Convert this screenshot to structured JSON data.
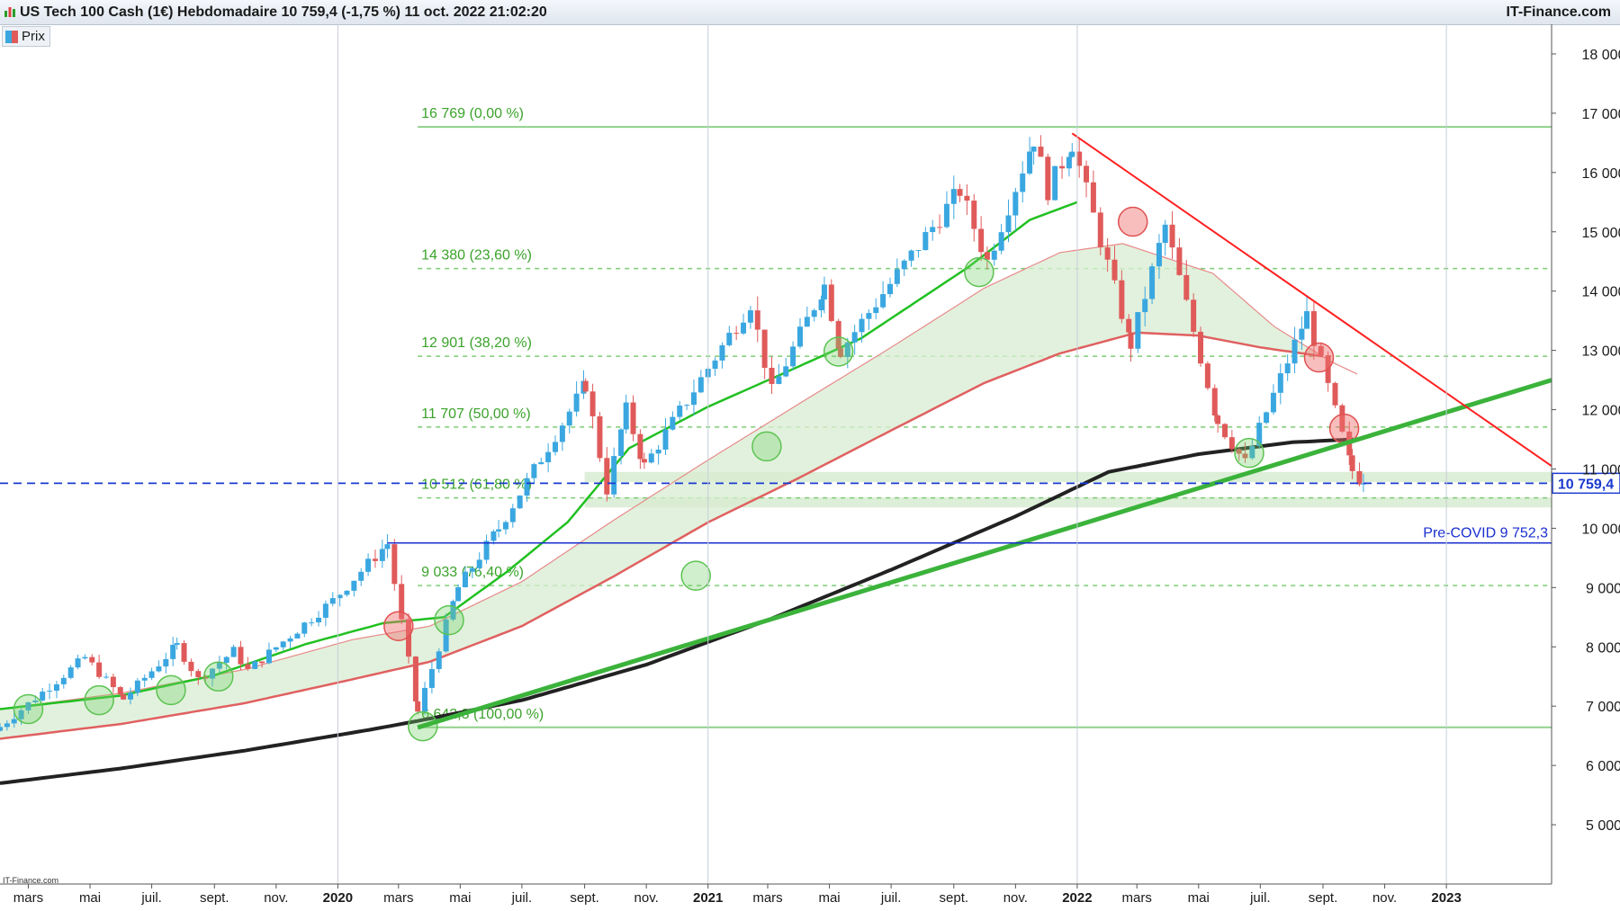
{
  "window": {
    "title": "US Tech 100 Cash (1€) Hebdomadaire 10 759,4 (-1,75 %) 11 oct. 2022 21:02:20",
    "brand": "IT-Finance.com",
    "legend_label": "Prix",
    "credit": "IT-Finance.com"
  },
  "colors": {
    "up_candle": "#3aa7e0",
    "down_candle": "#e05a5a",
    "ema_fast": "#22c022",
    "ma_slow": "#e06060",
    "ma_long": "#222222",
    "trend_up": "#3bb33b",
    "trend_down": "#ff2020",
    "fib": "#3aa32a",
    "last_price": "#1a3ad0"
  },
  "chart_data": {
    "type": "candlestick",
    "timeframe": "Hebdomadaire",
    "ylim": [
      4000,
      18500
    ],
    "y_ticks": [
      5000,
      6000,
      7000,
      8000,
      9000,
      10000,
      11000,
      12000,
      13000,
      14000,
      15000,
      16000,
      17000,
      18000
    ],
    "y_tick_labels": [
      "5 000",
      "6 000",
      "7 000",
      "8 000",
      "9 000",
      "10 000",
      "11 000",
      "12 000",
      "13 000",
      "14 000",
      "15 000",
      "16 000",
      "17 000",
      "18 000"
    ],
    "xlim": [
      "2019-02-01",
      "2023-04-15"
    ],
    "x_ticks": [
      {
        "date": "2019-03-01",
        "label": "mars",
        "bold": false
      },
      {
        "date": "2019-05-01",
        "label": "mai",
        "bold": false
      },
      {
        "date": "2019-07-01",
        "label": "juil.",
        "bold": false
      },
      {
        "date": "2019-09-01",
        "label": "sept.",
        "bold": false
      },
      {
        "date": "2019-11-01",
        "label": "nov.",
        "bold": false
      },
      {
        "date": "2020-01-01",
        "label": "2020",
        "bold": true
      },
      {
        "date": "2020-03-01",
        "label": "mars",
        "bold": false
      },
      {
        "date": "2020-05-01",
        "label": "mai",
        "bold": false
      },
      {
        "date": "2020-07-01",
        "label": "juil.",
        "bold": false
      },
      {
        "date": "2020-09-01",
        "label": "sept.",
        "bold": false
      },
      {
        "date": "2020-11-01",
        "label": "nov.",
        "bold": false
      },
      {
        "date": "2021-01-01",
        "label": "2021",
        "bold": true
      },
      {
        "date": "2021-03-01",
        "label": "mars",
        "bold": false
      },
      {
        "date": "2021-05-01",
        "label": "mai",
        "bold": false
      },
      {
        "date": "2021-07-01",
        "label": "juil.",
        "bold": false
      },
      {
        "date": "2021-09-01",
        "label": "sept.",
        "bold": false
      },
      {
        "date": "2021-11-01",
        "label": "nov.",
        "bold": false
      },
      {
        "date": "2022-01-01",
        "label": "2022",
        "bold": true
      },
      {
        "date": "2022-03-01",
        "label": "mars",
        "bold": false
      },
      {
        "date": "2022-05-01",
        "label": "mai",
        "bold": false
      },
      {
        "date": "2022-07-01",
        "label": "juil.",
        "bold": false
      },
      {
        "date": "2022-09-01",
        "label": "sept.",
        "bold": false
      },
      {
        "date": "2022-11-01",
        "label": "nov.",
        "bold": false
      },
      {
        "date": "2023-01-01",
        "label": "2023",
        "bold": true
      }
    ],
    "price_path": [
      [
        "2019-02-01",
        6650
      ],
      [
        "2019-04-26",
        7820
      ],
      [
        "2019-06-03",
        7120
      ],
      [
        "2019-07-26",
        8020
      ],
      [
        "2019-08-16",
        7450
      ],
      [
        "2019-09-20",
        7930
      ],
      [
        "2019-10-04",
        7600
      ],
      [
        "2019-12-27",
        8780
      ],
      [
        "2020-02-19",
        9740
      ],
      [
        "2020-03-20",
        6900
      ],
      [
        "2020-04-29",
        9000
      ],
      [
        "2020-06-08",
        10000
      ],
      [
        "2020-09-02",
        12420
      ],
      [
        "2020-09-23",
        10650
      ],
      [
        "2020-10-12",
        12000
      ],
      [
        "2020-10-30",
        11050
      ],
      [
        "2021-02-12",
        13800
      ],
      [
        "2021-03-05",
        12300
      ],
      [
        "2021-04-26",
        14100
      ],
      [
        "2021-05-12",
        13000
      ],
      [
        "2021-09-07",
        15700
      ],
      [
        "2021-10-04",
        14500
      ],
      [
        "2021-11-19",
        16570
      ],
      [
        "2021-12-03",
        15700
      ],
      [
        "2021-12-27",
        16500
      ],
      [
        "2022-02-23",
        13100
      ],
      [
        "2022-03-29",
        15100
      ],
      [
        "2022-05-20",
        11800
      ],
      [
        "2022-06-16",
        11100
      ],
      [
        "2022-08-16",
        13600
      ],
      [
        "2022-09-30",
        10970
      ],
      [
        "2022-10-11",
        10759.4
      ]
    ],
    "ema_fast_path": [
      [
        "2019-02-01",
        6950
      ],
      [
        "2019-06-01",
        7180
      ],
      [
        "2019-09-01",
        7520
      ],
      [
        "2019-12-01",
        8050
      ],
      [
        "2020-02-15",
        8400
      ],
      [
        "2020-04-15",
        8500
      ],
      [
        "2020-06-15",
        9250
      ],
      [
        "2020-08-15",
        10100
      ],
      [
        "2020-10-15",
        11350
      ],
      [
        "2021-01-01",
        12050
      ],
      [
        "2021-03-15",
        12600
      ],
      [
        "2021-06-01",
        13200
      ],
      [
        "2021-09-15",
        14400
      ],
      [
        "2021-11-15",
        15200
      ],
      [
        "2022-01-01",
        15500
      ]
    ],
    "ma_slow_path": [
      [
        "2019-02-01",
        6450
      ],
      [
        "2019-06-01",
        6700
      ],
      [
        "2019-10-01",
        7050
      ],
      [
        "2020-01-15",
        7450
      ],
      [
        "2020-04-01",
        7750
      ],
      [
        "2020-07-01",
        8350
      ],
      [
        "2020-10-01",
        9200
      ],
      [
        "2021-01-01",
        10100
      ],
      [
        "2021-04-01",
        10850
      ],
      [
        "2021-07-01",
        11650
      ],
      [
        "2021-10-01",
        12450
      ],
      [
        "2021-12-15",
        12950
      ],
      [
        "2022-03-01",
        13300
      ],
      [
        "2022-05-01",
        13250
      ],
      [
        "2022-07-01",
        13050
      ],
      [
        "2022-09-01",
        12900
      ]
    ],
    "ma_slow_upper_path": [
      [
        "2019-02-01",
        6950
      ],
      [
        "2019-06-01",
        7220
      ],
      [
        "2019-10-01",
        7620
      ],
      [
        "2020-01-15",
        8120
      ],
      [
        "2020-04-01",
        8350
      ],
      [
        "2020-07-01",
        9100
      ],
      [
        "2020-10-01",
        10150
      ],
      [
        "2021-01-01",
        11150
      ],
      [
        "2021-04-01",
        12100
      ],
      [
        "2021-07-01",
        13050
      ],
      [
        "2021-10-01",
        14050
      ],
      [
        "2021-12-15",
        14650
      ],
      [
        "2022-02-15",
        14800
      ],
      [
        "2022-05-15",
        14300
      ],
      [
        "2022-07-15",
        13400
      ],
      [
        "2022-09-10",
        12800
      ],
      [
        "2022-10-05",
        12600
      ]
    ],
    "ma_long_path": [
      [
        "2019-02-01",
        5700
      ],
      [
        "2019-06-01",
        5950
      ],
      [
        "2019-10-01",
        6250
      ],
      [
        "2020-02-01",
        6600
      ],
      [
        "2020-03-20",
        6750
      ],
      [
        "2020-07-01",
        7100
      ],
      [
        "2020-11-01",
        7700
      ],
      [
        "2021-03-01",
        8450
      ],
      [
        "2021-07-01",
        9300
      ],
      [
        "2021-11-01",
        10200
      ],
      [
        "2022-02-01",
        10950
      ],
      [
        "2022-05-01",
        11250
      ],
      [
        "2022-08-01",
        11450
      ],
      [
        "2022-10-01",
        11500
      ]
    ],
    "trend_up_line": [
      [
        "2020-03-20",
        6640
      ],
      [
        "2023-04-15",
        12500
      ]
    ],
    "trend_down_line": [
      [
        "2021-12-27",
        16660
      ],
      [
        "2023-04-15",
        11050
      ]
    ],
    "fibonacci": [
      {
        "value": 16769,
        "label": "16 769 (0,00 %)",
        "solid": true
      },
      {
        "value": 14380,
        "label": "14 380 (23,60 %)",
        "solid": false
      },
      {
        "value": 12901,
        "label": "12 901 (38,20 %)",
        "solid": false
      },
      {
        "value": 11707,
        "label": "11 707 (50,00 %)",
        "solid": false
      },
      {
        "value": 10512,
        "label": "10 512 (61,80 %)",
        "solid": false
      },
      {
        "value": 9033,
        "label": "9 033 (76,40 %)",
        "solid": false
      },
      {
        "value": 6642.3,
        "label": "6 642,3 (100,00 %)",
        "solid": true
      }
    ],
    "fib_start": "2020-03-20",
    "support_zones": [
      {
        "from": 10780,
        "to": 10950,
        "start": "2020-09-01"
      },
      {
        "from": 10350,
        "to": 10520,
        "start": "2020-09-01"
      }
    ],
    "pre_covid": {
      "value": 9752.3,
      "label": "Pre-COVID 9 752,3",
      "start": "2020-02-19"
    },
    "last_price": {
      "value": 10759.4,
      "label": "10 759,4"
    },
    "touch_circles_support": [
      [
        "2019-03-01",
        6950
      ],
      [
        "2019-05-10",
        7100
      ],
      [
        "2019-07-20",
        7270
      ],
      [
        "2019-09-05",
        7500
      ],
      [
        "2020-03-25",
        6660
      ],
      [
        "2020-04-20",
        8450
      ],
      [
        "2020-12-20",
        9200
      ],
      [
        "2021-02-28",
        11380
      ],
      [
        "2021-05-10",
        12980
      ],
      [
        "2021-09-26",
        14320
      ],
      [
        "2022-06-20",
        11270
      ]
    ],
    "touch_circles_resistance": [
      [
        "2020-03-01",
        8350
      ],
      [
        "2022-02-25",
        15170
      ],
      [
        "2022-08-28",
        12880
      ],
      [
        "2022-09-22",
        11680
      ]
    ]
  }
}
